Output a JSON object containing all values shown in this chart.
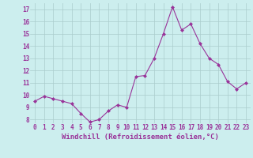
{
  "x": [
    0,
    1,
    2,
    3,
    4,
    5,
    6,
    7,
    8,
    9,
    10,
    11,
    12,
    13,
    14,
    15,
    16,
    17,
    18,
    19,
    20,
    21,
    22,
    23
  ],
  "y": [
    9.5,
    9.9,
    9.7,
    9.5,
    9.3,
    8.5,
    7.8,
    8.0,
    8.7,
    9.2,
    9.0,
    11.5,
    11.6,
    13.0,
    15.0,
    17.2,
    15.3,
    15.8,
    14.2,
    13.0,
    12.5,
    11.1,
    10.5,
    11.0
  ],
  "line_color": "#993399",
  "marker": "D",
  "marker_size": 2,
  "bg_color": "#cceeee",
  "grid_color": "#aacccc",
  "xlabel": "Windchill (Refroidissement éolien,°C)",
  "xlabel_color": "#993399",
  "tick_color": "#993399",
  "label_color": "#993399",
  "ylim": [
    7.7,
    17.5
  ],
  "xlim": [
    -0.5,
    23.5
  ],
  "yticks": [
    8,
    9,
    10,
    11,
    12,
    13,
    14,
    15,
    16,
    17
  ],
  "xticks": [
    0,
    1,
    2,
    3,
    4,
    5,
    6,
    7,
    8,
    9,
    10,
    11,
    12,
    13,
    14,
    15,
    16,
    17,
    18,
    19,
    20,
    21,
    22,
    23
  ],
  "tick_fontsize": 5.5,
  "xlabel_fontsize": 6.5
}
